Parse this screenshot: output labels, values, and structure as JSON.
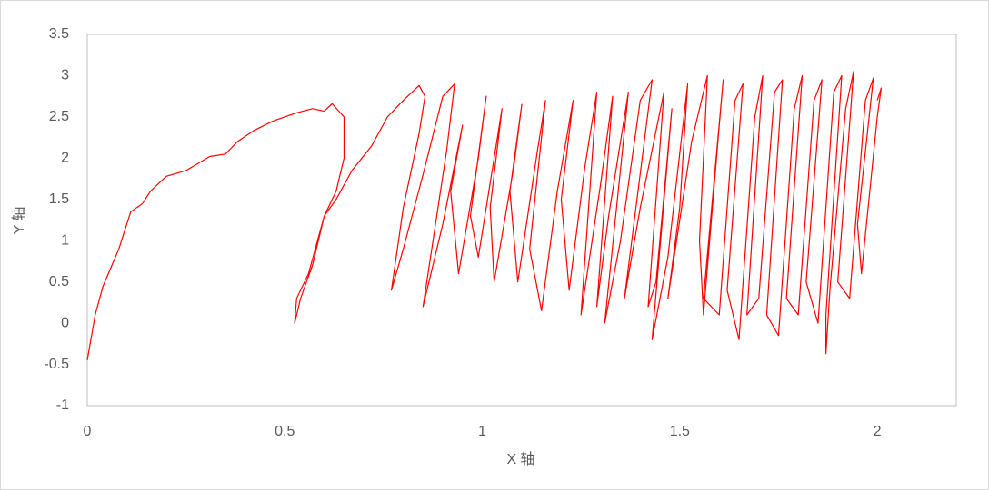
{
  "chart_data": {
    "type": "line",
    "x_label": "X 轴",
    "y_label": "Y 轴",
    "color": "#ff0000",
    "xlim": [
      0,
      2.2
    ],
    "xticks": [
      0,
      0.5,
      1,
      1.5,
      2
    ],
    "ylim": [
      -1,
      3.5
    ],
    "yticks": [
      -1,
      -0.5,
      0,
      0.5,
      1,
      1.5,
      2,
      2.5,
      3,
      3.5
    ],
    "grid": false,
    "x": [
      0,
      0.02,
      0.04,
      0.08,
      0.11,
      0.14,
      0.16,
      0.2,
      0.25,
      0.31,
      0.35,
      0.38,
      0.42,
      0.47,
      0.53,
      0.57,
      0.6,
      0.62,
      0.65,
      0.65,
      0.63,
      0.6,
      0.57,
      0.54,
      0.525,
      0.53,
      0.56,
      0.6,
      0.63,
      0.67,
      0.72,
      0.76,
      0.8,
      0.84,
      0.855,
      0.84,
      0.8,
      0.77,
      0.8,
      0.85,
      0.9,
      0.93,
      0.91,
      0.85,
      0.9,
      0.95,
      0.92,
      0.94,
      0.99,
      1.01,
      0.97,
      0.99,
      1.05,
      1.02,
      1.03,
      1.08,
      1.1,
      1.07,
      1.09,
      1.14,
      1.16,
      1.12,
      1.15,
      1.19,
      1.23,
      1.2,
      1.22,
      1.26,
      1.29,
      1.25,
      1.3,
      1.33,
      1.29,
      1.32,
      1.37,
      1.31,
      1.35,
      1.4,
      1.43,
      1.36,
      1.4,
      1.46,
      1.42,
      1.44,
      1.48,
      1.43,
      1.47,
      1.52,
      1.5,
      1.47,
      1.53,
      1.57,
      1.55,
      1.56,
      1.6,
      1.61,
      1.56,
      1.6,
      1.64,
      1.66,
      1.62,
      1.65,
      1.69,
      1.71,
      1.67,
      1.7,
      1.74,
      1.76,
      1.72,
      1.75,
      1.79,
      1.81,
      1.77,
      1.8,
      1.84,
      1.86,
      1.82,
      1.85,
      1.89,
      1.91,
      1.87,
      1.87,
      1.88,
      1.92,
      1.94,
      1.9,
      1.93,
      1.97,
      1.99,
      1.95,
      1.96,
      2.0,
      2.01,
      2.0
    ],
    "values": [
      -0.45,
      0.1,
      0.45,
      0.9,
      1.35,
      1.45,
      1.6,
      1.78,
      1.85,
      2.02,
      2.05,
      2.2,
      2.33,
      2.45,
      2.55,
      2.6,
      2.57,
      2.66,
      2.5,
      2.0,
      1.6,
      1.3,
      0.7,
      0.3,
      0,
      0.3,
      0.6,
      1.3,
      1.5,
      1.85,
      2.15,
      2.5,
      2.7,
      2.88,
      2.75,
      2.3,
      1.4,
      0.4,
      0.9,
      1.8,
      2.75,
      2.9,
      2.1,
      0.2,
      1.2,
      2.4,
      1.6,
      0.6,
      2.0,
      2.75,
      1.3,
      0.8,
      2.6,
      1.4,
      0.5,
      1.9,
      2.65,
      1.6,
      0.5,
      2.1,
      2.7,
      0.9,
      0.15,
      1.6,
      2.7,
      1.5,
      0.4,
      1.9,
      2.8,
      0.1,
      1.7,
      2.75,
      0.2,
      1.3,
      2.8,
      0.0,
      1.0,
      2.7,
      2.95,
      0.3,
      1.4,
      2.8,
      0.2,
      0.5,
      2.6,
      -0.2,
      0.8,
      2.9,
      1.4,
      0.3,
      2.2,
      3.0,
      1.0,
      0.1,
      2.4,
      2.95,
      0.3,
      0.1,
      2.7,
      2.9,
      0.4,
      -0.2,
      2.5,
      3.0,
      0.1,
      0.3,
      2.8,
      2.95,
      0.1,
      -0.15,
      2.6,
      3.0,
      0.3,
      0.1,
      2.7,
      2.95,
      0.5,
      0.0,
      2.8,
      3.0,
      0.1,
      -0.37,
      0.4,
      2.6,
      3.05,
      0.5,
      0.3,
      2.7,
      2.97,
      1.2,
      0.6,
      2.5,
      2.85,
      2.7
    ]
  }
}
